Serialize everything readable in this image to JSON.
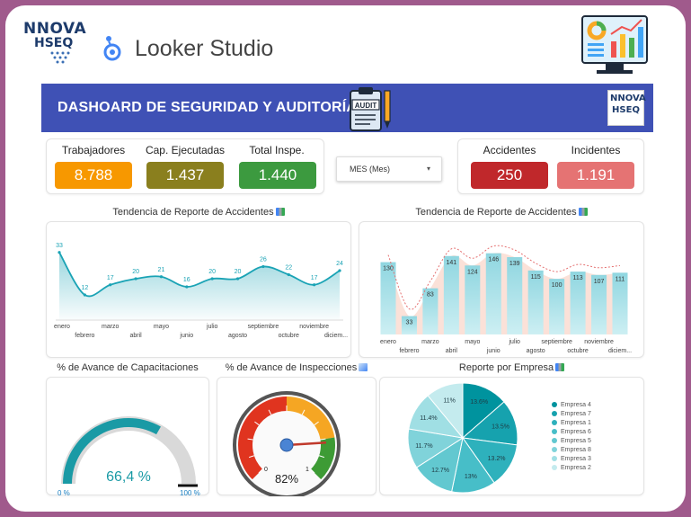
{
  "brand": {
    "logo_line1": "NNOVA",
    "logo_line2": "HSEQ"
  },
  "app": {
    "name": "Looker Studio"
  },
  "banner": {
    "title": "DASHOARD DE SEGURIDAD Y AUDITORÍA",
    "clipboard_label": "AUDIT",
    "logo_line1": "NNOVA",
    "logo_line2": "HSEQ"
  },
  "kpis_left": [
    {
      "label": "Trabajadores",
      "value": "8.788",
      "color": "#f79800"
    },
    {
      "label": "Cap. Ejecutadas",
      "value": "1.437",
      "color": "#8a7f1e"
    },
    {
      "label": "Total Inspe.",
      "value": "1.440",
      "color": "#3c9a3f"
    }
  ],
  "filter": {
    "label": "MES (Mes)",
    "chevron": "▾"
  },
  "kpis_right": [
    {
      "label": "Accidentes",
      "value": "250",
      "color": "#c0282b"
    },
    {
      "label": "Incidentes",
      "value": "1.191",
      "color": "#e57373"
    }
  ],
  "sections": {
    "line_title": "Tendencia de Reporte de Accidentes",
    "bar_title": "Tendencia de Reporte de Accidentes",
    "cap_title": "% de Avance de Capacitaciones",
    "insp_title": "% de Avance de Inspecciones",
    "pie_title": "Reporte por Empresa"
  },
  "chart_data": [
    {
      "type": "line",
      "categories": [
        "enero",
        "febrero",
        "marzo",
        "abril",
        "mayo",
        "junio",
        "julio",
        "agosto",
        "septiembre",
        "octubre",
        "noviembre",
        "diciem..."
      ],
      "values": [
        33,
        12,
        17,
        20,
        21,
        16,
        20,
        20,
        26,
        22,
        17,
        24
      ],
      "color": "#1aa3b5"
    },
    {
      "type": "bar",
      "categories": [
        "enero",
        "febrero",
        "marzo",
        "abril",
        "mayo",
        "junio",
        "julio",
        "agosto",
        "septiembre",
        "octubre",
        "noviembre",
        "diciem..."
      ],
      "values": [
        130,
        33,
        83,
        141,
        124,
        146,
        139,
        115,
        100,
        113,
        107,
        111
      ],
      "color": "#a8e4ec"
    },
    {
      "type": "gauge",
      "value": 66.4,
      "value_label": "66,4 %",
      "min_label": "0 %",
      "max_label": "100 %",
      "color": "#1a9aa5"
    },
    {
      "type": "gauge",
      "value": 82,
      "value_label": "82%",
      "min_label": "0",
      "max_label": "1"
    },
    {
      "type": "pie",
      "slices": [
        {
          "name": "Empresa 4",
          "value": 13.6,
          "label": "13.6%",
          "color": "#00939e"
        },
        {
          "name": "Empresa 7",
          "value": 13.5,
          "label": "13.5%",
          "color": "#16a2ae"
        },
        {
          "name": "Empresa 1",
          "value": 13.2,
          "label": "13.2%",
          "color": "#2eb1bc"
        },
        {
          "name": "Empresa 6",
          "value": 13,
          "label": "13%",
          "color": "#47bec8"
        },
        {
          "name": "Empresa 5",
          "value": 12.7,
          "label": "12.7%",
          "color": "#62c8d0"
        },
        {
          "name": "Empresa 8",
          "value": 11.7,
          "label": "11.7%",
          "color": "#80d3da"
        },
        {
          "name": "Empresa 3",
          "value": 11.4,
          "label": "11.4%",
          "color": "#a0dfe4"
        },
        {
          "name": "Empresa 2",
          "value": 11,
          "label": "11%",
          "color": "#c4ebee"
        }
      ]
    }
  ]
}
